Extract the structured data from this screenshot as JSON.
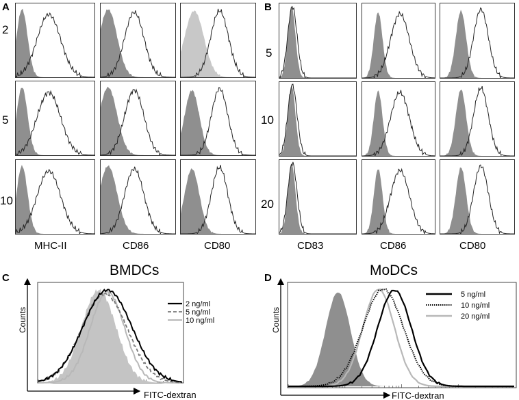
{
  "panels": {
    "A": "A",
    "B": "B",
    "C": "C",
    "D": "D"
  },
  "top": {
    "A": {
      "rows": [
        "2",
        "5",
        "10"
      ],
      "markers": [
        "MHC-II",
        "CD86",
        "CD80"
      ]
    },
    "B": {
      "rows": [
        "5",
        "10",
        "20"
      ],
      "markers": [
        "CD83",
        "CD86",
        "CD80"
      ]
    }
  },
  "colors": {
    "fill_gray": "#8f8f8f",
    "fill_light": "#c8c8c8",
    "line": "#222222"
  },
  "chart_data": [
    {
      "panel": "C",
      "type": "line",
      "title": "BMDCs",
      "xlabel": "FITC-dextran",
      "ylabel": "Counts",
      "legend": [
        "2 ng/ml",
        "5 ng/ml",
        "10 ng/ml"
      ]
    },
    {
      "panel": "D",
      "type": "line",
      "title": "MoDCs",
      "xlabel": "FITC-dextran",
      "ylabel": "Counts",
      "legend": [
        "5  ng/ml",
        "10 ng/ml",
        "20 ng/ml"
      ]
    }
  ]
}
